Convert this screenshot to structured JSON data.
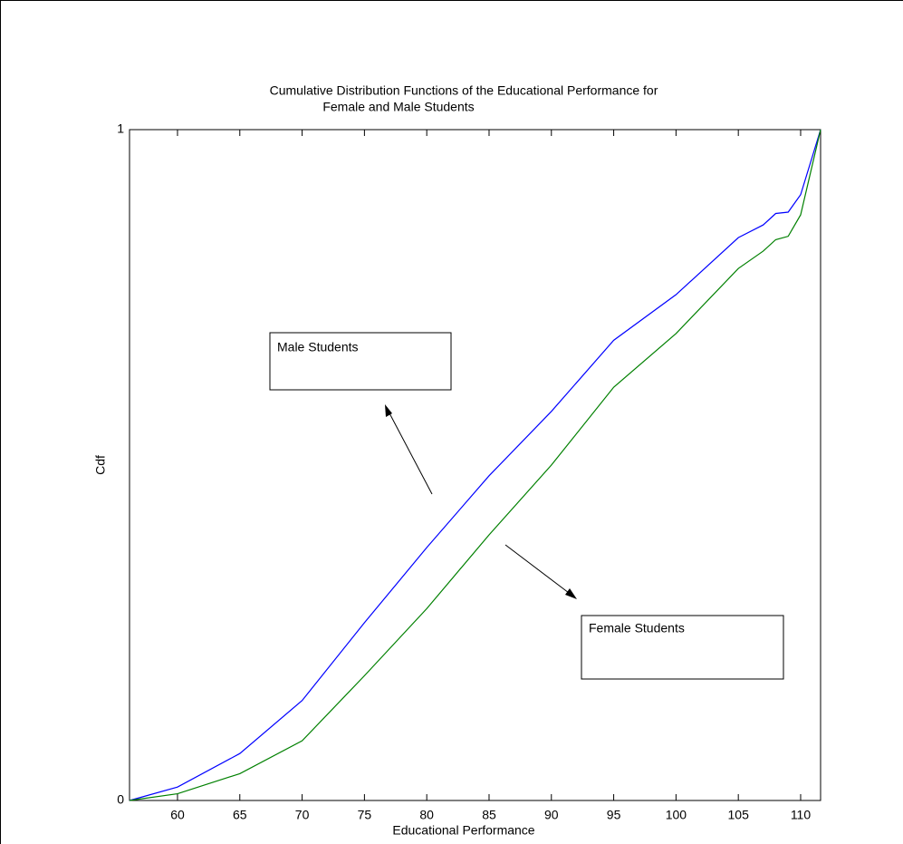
{
  "chart_data": {
    "type": "line",
    "title": [
      "Cumulative Distribution Functions of the Educational Performance for",
      "Female and Male Students"
    ],
    "x_label": "Educational Performance",
    "y_label": "Cdf",
    "x": [
      56.15,
      60,
      65,
      70,
      75,
      80,
      85,
      90,
      95,
      100,
      105,
      107,
      108,
      109,
      110,
      111.6
    ],
    "series": [
      {
        "color": "#0000ff",
        "values": [
          0,
          0.02,
          0.07,
          0.149,
          0.265,
          0.377,
          0.484,
          0.58,
          0.686,
          0.754,
          0.839,
          0.858,
          0.875,
          0.877,
          0.903,
          1
        ]
      },
      {
        "color": "#008000",
        "values": [
          0,
          0.01,
          0.04,
          0.089,
          0.186,
          0.286,
          0.396,
          0.5,
          0.616,
          0.696,
          0.793,
          0.819,
          0.836,
          0.841,
          0.873,
          1
        ]
      }
    ],
    "annotations": [
      "Male Students",
      "Female Students"
    ],
    "xlim": [
      56.15,
      111.6
    ],
    "ylim": [
      0,
      1
    ],
    "xticks": [
      60,
      65,
      70,
      75,
      80,
      85,
      90,
      95,
      100,
      105,
      110
    ],
    "yticks": [
      0,
      1
    ],
    "grid": false
  }
}
